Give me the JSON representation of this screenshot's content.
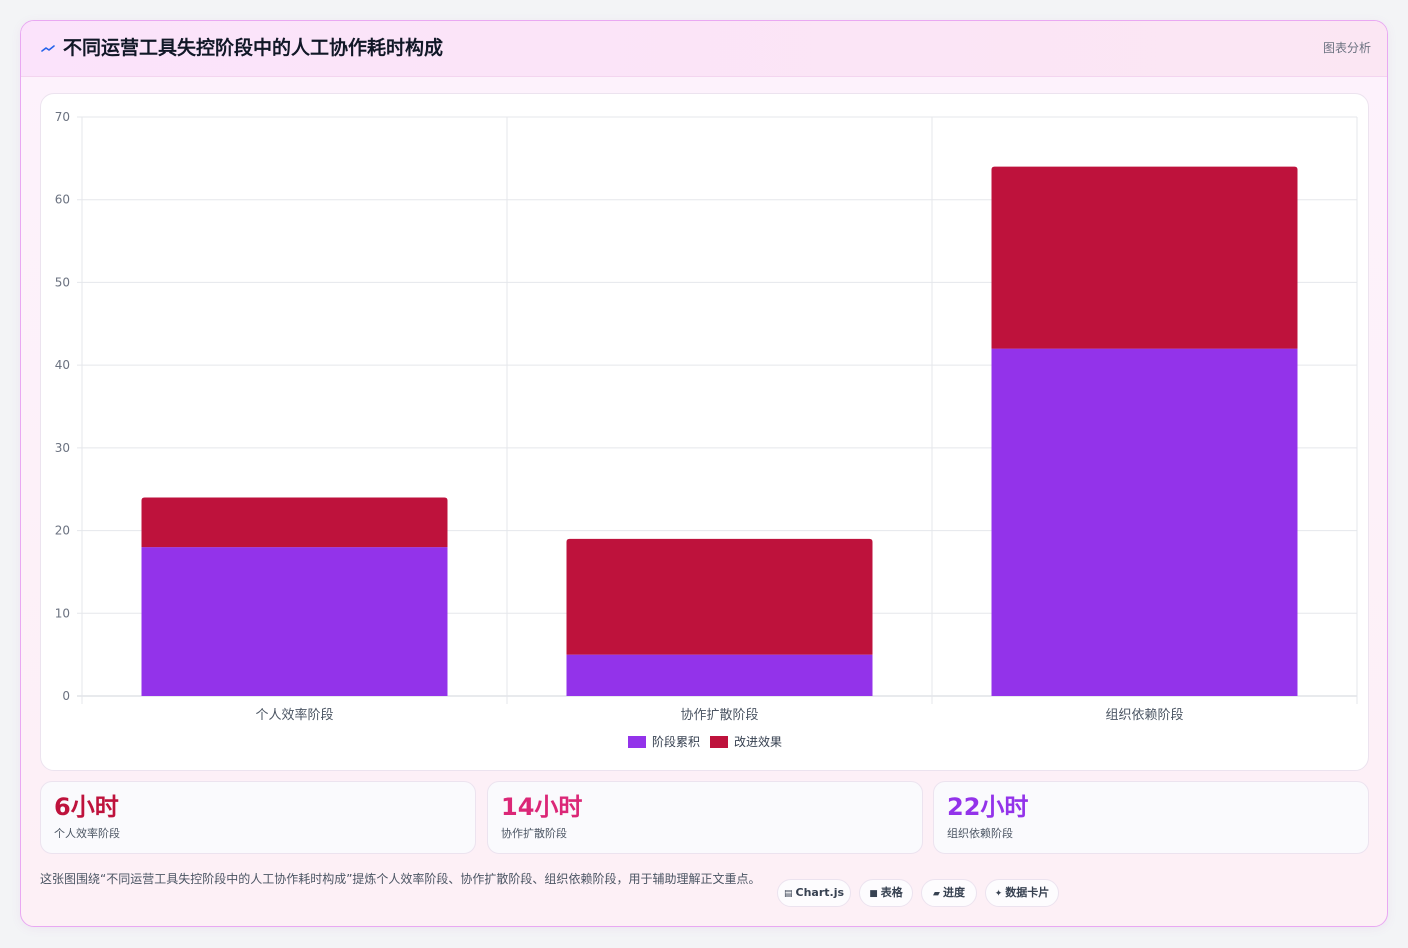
{
  "header": {
    "title": "不同运营工具失控阶段中的人工协作耗时构成",
    "tag": "图表分析"
  },
  "colors": {
    "series_1": "#9333ea",
    "series_2": "#be123c",
    "kpi_1": "#be123c",
    "kpi_2": "#db2777",
    "kpi_3": "#9333ea"
  },
  "chart_data": {
    "type": "bar",
    "stacked": true,
    "categories": [
      "个人效率阶段",
      "协作扩散阶段",
      "组织依赖阶段"
    ],
    "series": [
      {
        "name": "阶段累积",
        "values": [
          18,
          5,
          42
        ]
      },
      {
        "name": "改进效果",
        "values": [
          6,
          14,
          22
        ]
      }
    ],
    "ylim": [
      0,
      70
    ],
    "yticks": [
      0,
      10,
      20,
      30,
      40,
      50,
      60,
      70
    ],
    "grid": true,
    "legend": "bottom"
  },
  "kpis": [
    {
      "value": "6小时",
      "label": "个人效率阶段"
    },
    {
      "value": "14小时",
      "label": "协作扩散阶段"
    },
    {
      "value": "22小时",
      "label": "组织依赖阶段"
    }
  ],
  "note": "这张图围绕“不同运营工具失控阶段中的人工协作耗时构成”提炼个人效率阶段、协作扩散阶段、组织依赖阶段，用于辅助理解正文重点。",
  "chips": [
    {
      "icon": "chart-icon",
      "label": "Chart.js"
    },
    {
      "icon": "table-icon",
      "label": "表格"
    },
    {
      "icon": "progress-icon",
      "label": "进度"
    },
    {
      "icon": "sparkle-icon",
      "label": "数据卡片"
    }
  ]
}
